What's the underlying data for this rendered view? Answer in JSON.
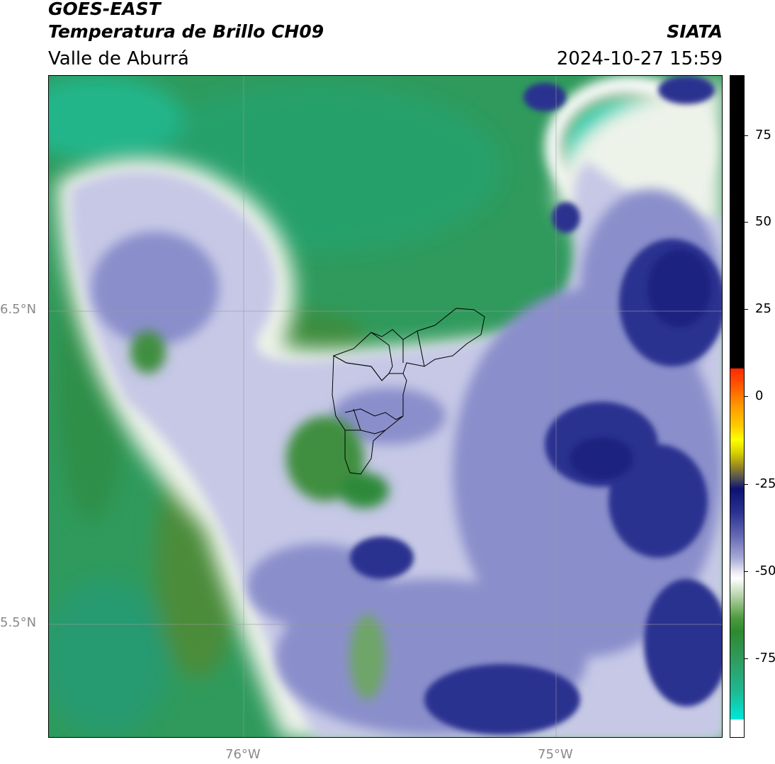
{
  "header": {
    "satellite": "GOES-EAST",
    "product": "Temperatura de Brillo CH09",
    "region": "Valle de Aburrá",
    "agency": "SIATA",
    "datetime": "2024-10-27 15:59"
  },
  "map": {
    "latitude_labels": [
      "6.5°N",
      "5.5°N"
    ],
    "longitude_labels": [
      "76°W",
      "75°W"
    ],
    "base_color": "#2f9a5c",
    "cloud_colors": [
      "#ffffff",
      "#d8d9ee",
      "#9aa0d2",
      "#4a54a8",
      "#1c2380"
    ]
  },
  "colorbar": {
    "tick_labels": [
      "75",
      "50",
      "25",
      "0",
      "-25",
      "-50",
      "-75"
    ],
    "colors": {
      "warm_black": "#000000",
      "red": "#ff2a00",
      "yellow": "#ffff00",
      "navy": "#0d1272",
      "white": "#ffffff",
      "green": "#2e8a2e",
      "cyan": "#00e8d8"
    }
  }
}
